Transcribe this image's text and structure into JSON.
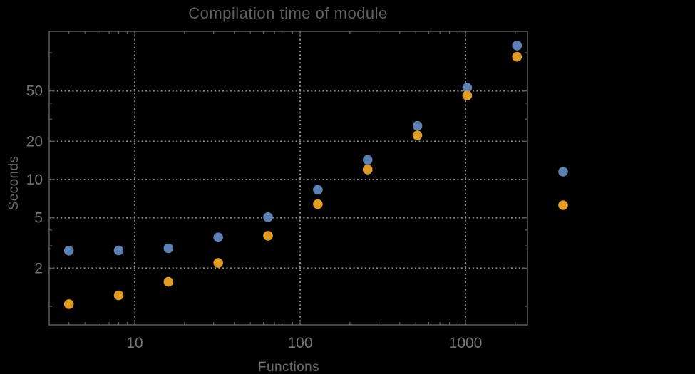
{
  "chart_data": {
    "type": "scatter",
    "title": "Compilation time of module",
    "xlabel": "Functions",
    "ylabel": "Seconds",
    "x_scale": "log",
    "y_scale": "log",
    "x_range": [
      3.04,
      2371
    ],
    "y_range": [
      0.714,
      147.6
    ],
    "grid": "dotted",
    "x_gridlines": [
      10,
      100,
      1000
    ],
    "y_gridlines": [
      2,
      5,
      10,
      20,
      50
    ],
    "x_major_ticks": [
      {
        "value": 10,
        "label": "10"
      },
      {
        "value": 100,
        "label": "100"
      },
      {
        "value": 1000,
        "label": "1000"
      }
    ],
    "x_minor_ticks": [
      4,
      5,
      6,
      7,
      8,
      9,
      20,
      30,
      40,
      50,
      60,
      70,
      80,
      90,
      200,
      300,
      400,
      500,
      600,
      700,
      800,
      900,
      2000
    ],
    "y_major_ticks": [
      {
        "value": 2,
        "label": "2"
      },
      {
        "value": 5,
        "label": "5"
      },
      {
        "value": 10,
        "label": "10"
      },
      {
        "value": 20,
        "label": "20"
      },
      {
        "value": 50,
        "label": "50"
      }
    ],
    "y_minor_ticks": [
      1,
      3,
      4,
      30,
      40,
      100
    ],
    "x": [
      4,
      8,
      16,
      32,
      64,
      128,
      256,
      512,
      1024,
      2048
    ],
    "series": [
      {
        "name": "series-1",
        "color": "#5e81b5",
        "values": [
          2.75,
          2.76,
          2.87,
          3.5,
          5.05,
          8.3,
          14.3,
          26.5,
          53,
          114
        ]
      },
      {
        "name": "series-2",
        "color": "#e19c24",
        "values": [
          1.04,
          1.22,
          1.56,
          2.2,
          3.6,
          6.4,
          12.0,
          22.3,
          46,
          93
        ]
      }
    ],
    "legend": {
      "position": "right-outside",
      "labels_visible": false,
      "markers": [
        {
          "series": "series-1",
          "color": "#5e81b5"
        },
        {
          "series": "series-2",
          "color": "#e19c24"
        }
      ]
    }
  },
  "colors": {
    "background": "#000000",
    "frame": "#5e5e5e",
    "gridline": "#8a8a8a",
    "tick": "#5e5e5e",
    "title_text": "#616161",
    "tick_text": "#747474",
    "axis_label_text": "#6b6b6b",
    "series1": "#5e81b5",
    "series2": "#e19c24"
  }
}
